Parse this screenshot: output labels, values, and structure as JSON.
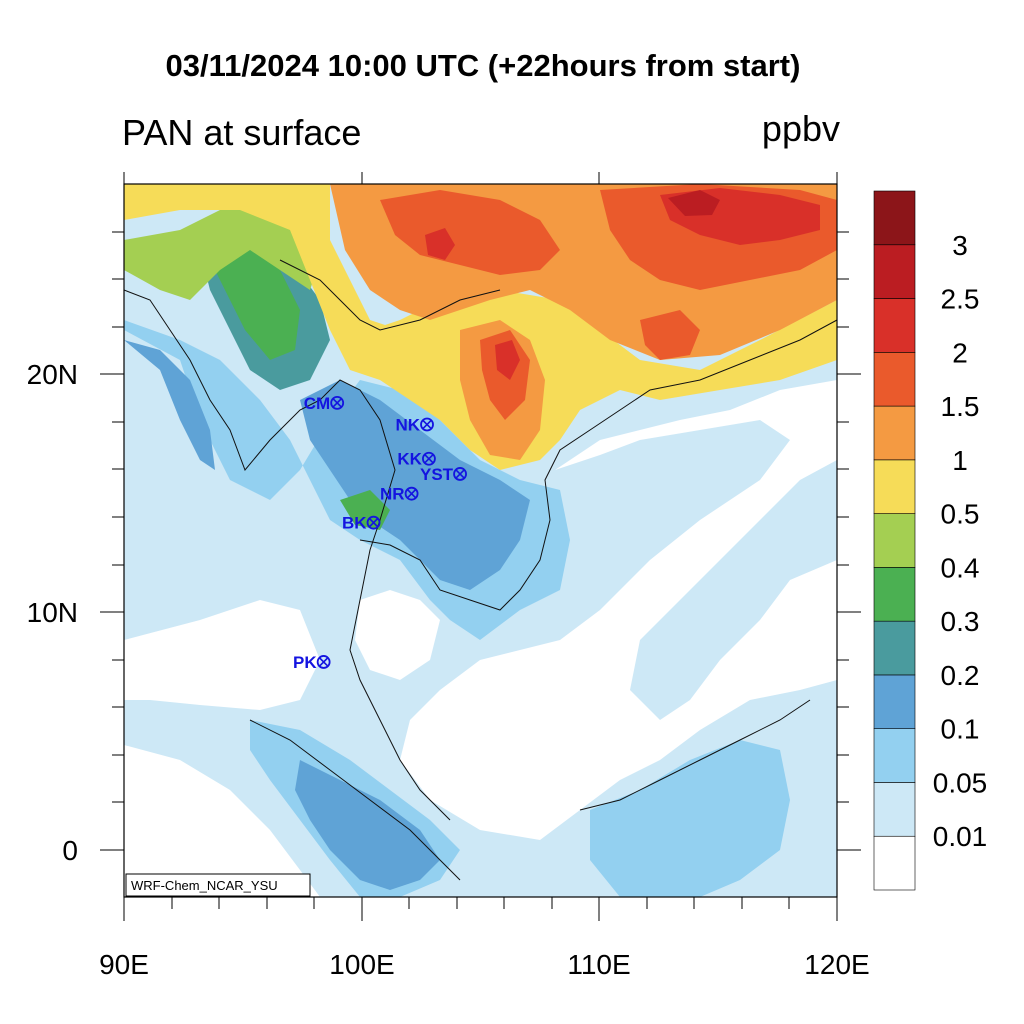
{
  "title": "03/11/2024 10:00 UTC (+22hours from start)",
  "left_title": "PAN at surface",
  "units": "ppbv",
  "credit": "WRF-Chem_NCAR_YSU",
  "map": {
    "lon_range": [
      90,
      120
    ],
    "lat_range": [
      -2,
      28
    ],
    "x_tick_labels": [
      "90E",
      "100E",
      "110E",
      "120E"
    ],
    "y_tick_labels": [
      "0",
      "10N",
      "20N"
    ]
  },
  "colorbar": {
    "levels": [
      "0.01",
      "0.05",
      "0.1",
      "0.2",
      "0.3",
      "0.4",
      "0.5",
      "1",
      "1.5",
      "2",
      "2.5",
      "3"
    ],
    "colors": [
      "#ffffff",
      "#cde8f6",
      "#93d0f0",
      "#5fa3d6",
      "#4a9b9e",
      "#4bb052",
      "#a4cf52",
      "#f6dc58",
      "#f49a42",
      "#ea5a2c",
      "#d93029",
      "#bb1d22",
      "#8c1519"
    ]
  },
  "stations": [
    {
      "label": "CM",
      "lon": 98.97,
      "lat": 18.79
    },
    {
      "label": "NK",
      "lon": 102.75,
      "lat": 17.88
    },
    {
      "label": "KK",
      "lon": 102.83,
      "lat": 16.44
    },
    {
      "label": "YST",
      "lon": 104.14,
      "lat": 15.8
    },
    {
      "label": "NR",
      "lon": 102.1,
      "lat": 14.97
    },
    {
      "label": "BK",
      "lon": 100.5,
      "lat": 13.75
    },
    {
      "label": "PK",
      "lon": 98.4,
      "lat": 7.89
    }
  ]
}
